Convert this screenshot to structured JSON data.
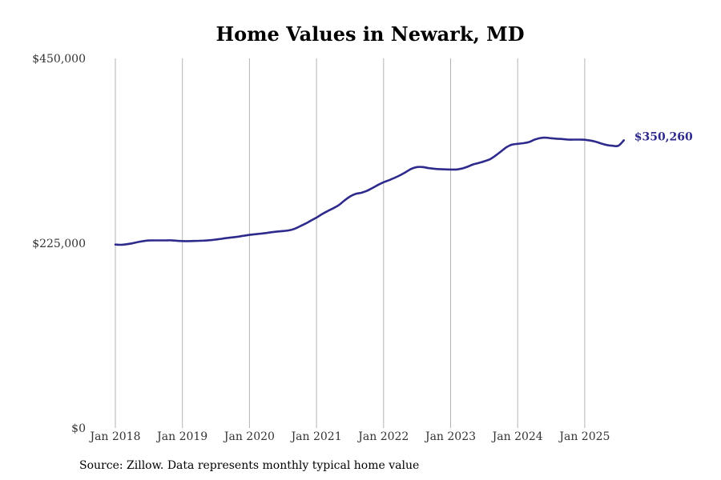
{
  "chart_data": {
    "type": "line",
    "title": "Home Values in Newark, MD",
    "xlabel": "",
    "ylabel": "",
    "ylim": [
      0,
      450000
    ],
    "y_ticks": [
      0,
      225000,
      450000
    ],
    "y_tick_labels": [
      "$0",
      "$225,000",
      "$450,000"
    ],
    "x_ticks": [
      "Jan 2018",
      "Jan 2019",
      "Jan 2020",
      "Jan 2021",
      "Jan 2022",
      "Jan 2023",
      "Jan 2024",
      "Jan 2025"
    ],
    "grid": "vertical",
    "line_color": "#2e2a8c",
    "end_label": "$350,260",
    "series": [
      {
        "x": [
          "2018-01",
          "2018-02",
          "2018-03",
          "2018-04",
          "2018-05",
          "2018-06",
          "2018-07",
          "2018-08",
          "2018-09",
          "2018-10",
          "2018-11",
          "2018-12",
          "2019-01",
          "2019-02",
          "2019-03",
          "2019-04",
          "2019-05",
          "2019-06",
          "2019-07",
          "2019-08",
          "2019-09",
          "2019-10",
          "2019-11",
          "2019-12",
          "2020-01",
          "2020-02",
          "2020-03",
          "2020-04",
          "2020-05",
          "2020-06",
          "2020-07",
          "2020-08",
          "2020-09",
          "2020-10",
          "2020-11",
          "2020-12",
          "2021-01",
          "2021-02",
          "2021-03",
          "2021-04",
          "2021-05",
          "2021-06",
          "2021-07",
          "2021-08",
          "2021-09",
          "2021-10",
          "2021-11",
          "2021-12",
          "2022-01",
          "2022-02",
          "2022-03",
          "2022-04",
          "2022-05",
          "2022-06",
          "2022-07",
          "2022-08",
          "2022-09",
          "2022-10",
          "2022-11",
          "2022-12",
          "2023-01",
          "2023-02",
          "2023-03",
          "2023-04",
          "2023-05",
          "2023-06",
          "2023-07",
          "2023-08",
          "2023-09",
          "2023-10",
          "2023-11",
          "2023-12",
          "2024-01",
          "2024-02",
          "2024-03",
          "2024-04",
          "2024-05",
          "2024-06",
          "2024-07",
          "2024-08",
          "2024-09",
          "2024-10",
          "2024-11",
          "2024-12",
          "2025-01",
          "2025-02",
          "2025-03",
          "2025-04",
          "2025-05",
          "2025-06",
          "2025-07",
          "2025-08"
        ],
        "values": [
          223300,
          223100,
          223700,
          224800,
          226400,
          227500,
          228300,
          228400,
          228400,
          228400,
          228500,
          228000,
          227600,
          227500,
          227700,
          227900,
          228200,
          228700,
          229500,
          230400,
          231300,
          232100,
          233000,
          234100,
          235100,
          235900,
          236600,
          237400,
          238400,
          239200,
          239800,
          240600,
          242300,
          245500,
          248800,
          252500,
          256200,
          260500,
          264200,
          267600,
          271500,
          277000,
          281900,
          285000,
          286400,
          288700,
          292200,
          295900,
          299200,
          301800,
          304700,
          307900,
          311700,
          315700,
          317700,
          317700,
          316500,
          315700,
          315200,
          314900,
          314700,
          314700,
          315900,
          318000,
          320800,
          322600,
          324700,
          327100,
          331500,
          336600,
          341900,
          345000,
          346000,
          346800,
          348100,
          351000,
          353000,
          353500,
          352800,
          352200,
          351800,
          351100,
          351100,
          351100,
          350900,
          350000,
          348500,
          346300,
          344500,
          343600,
          343600,
          350260
        ]
      }
    ]
  },
  "source_note": "Source: Zillow. Data represents monthly typical home value"
}
